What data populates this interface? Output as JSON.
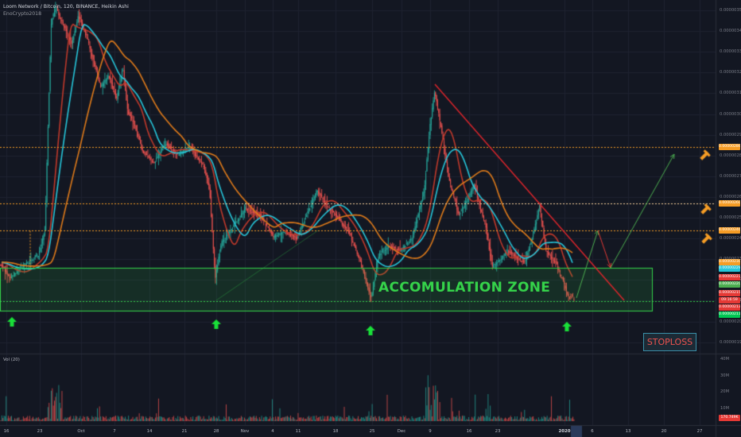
{
  "header": {
    "symbol_line": "Loom Network / Bitcoin, 120, BINANCE, Heikin Ashi",
    "author": "EnoCrypto2018"
  },
  "price_axis": {
    "labels": [
      "0.00000350",
      "0.00000340",
      "0.00000330",
      "0.00000320",
      "0.00000310",
      "0.00000300",
      "0.00000290",
      "0.00000280",
      "0.00000270",
      "0.00000260",
      "0.00000250",
      "0.00000240",
      "0.00000230",
      "0.00000220",
      "0.00000210",
      "0.00000200",
      "0.00000190"
    ],
    "tags": [
      {
        "text": "0.00000286",
        "color": "#f59c25"
      },
      {
        "text": "0.00000260",
        "color": "#f59c25"
      },
      {
        "text": "0.00000246",
        "color": "#f59c25"
      },
      {
        "text": "0.00000230",
        "color": "#f59c25"
      },
      {
        "text": "0.00000229",
        "color": "#26c6da"
      },
      {
        "text": "0.00000223",
        "color": "#e53935"
      },
      {
        "text": "0.00000220",
        "color": "#4caf50"
      },
      {
        "text": "0.00000215",
        "color": "#e53935"
      },
      {
        "text": "09:16:59",
        "color": "#e53935"
      },
      {
        "text": "0.00000213",
        "color": "#e53935"
      },
      {
        "text": "0.00000211",
        "color": "#00c853"
      }
    ]
  },
  "volume": {
    "label": "Vol (20)",
    "axis_labels": [
      "40M",
      "30M",
      "20M",
      "10M"
    ],
    "tag": "170.749K"
  },
  "time_axis": {
    "labels": [
      "16",
      "23",
      "Oct",
      "7",
      "14",
      "21",
      "28",
      "Nov",
      "4",
      "11",
      "18",
      "25",
      "Dec",
      "9",
      "16",
      "23",
      "2020",
      "6",
      "13",
      "20",
      "27"
    ],
    "highlighted": "2020"
  },
  "annotations": {
    "zone_label": "ACCOMULATION ZONE",
    "stoploss_label": "STOPLOSS"
  },
  "colors": {
    "background": "#131722",
    "orange_level": "#f59c25",
    "zone_green": "#35d24a",
    "downtrend_red": "#e5252b",
    "ma_cyan": "#26c6da",
    "ma_orange": "#e07b1a",
    "arrow_green": "#19e038"
  },
  "icons": [
    "up-arrow-icon",
    "up-arrow-icon",
    "up-arrow-icon",
    "up-arrow-icon",
    "price-tag-icon",
    "price-tag-icon",
    "price-tag-icon"
  ]
}
